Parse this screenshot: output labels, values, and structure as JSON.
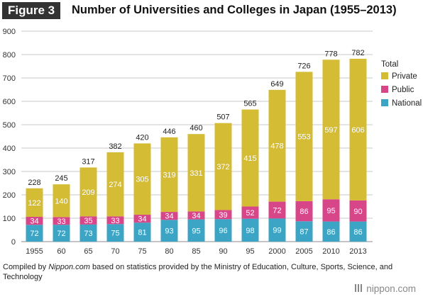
{
  "header": {
    "figure_label": "Figure 3",
    "title": "Number of Universities and Colleges in Japan (1955–2013)"
  },
  "source": {
    "prefix": "Compiled by ",
    "site": "Nippon.com",
    "suffix": " based on statistics provided by the Ministry of Education, Culture, Sports, Science, and Technology"
  },
  "logo": {
    "text": "nippon.com"
  },
  "colors": {
    "private": "#d4bc34",
    "public": "#d8468a",
    "national": "#3ca4c4",
    "grid": "#c8c8c8",
    "axis": "#888888"
  },
  "chart_data": {
    "type": "bar",
    "stacked": true,
    "title": "Number of Universities and Colleges in Japan (1955–2013)",
    "categories": [
      "1955",
      "60",
      "65",
      "70",
      "75",
      "80",
      "85",
      "90",
      "95",
      "2000",
      "2005",
      "2010",
      "2013"
    ],
    "series": [
      {
        "name": "National",
        "values": [
          72,
          72,
          73,
          75,
          81,
          93,
          95,
          96,
          98,
          99,
          87,
          86,
          86
        ]
      },
      {
        "name": "Public",
        "values": [
          34,
          33,
          35,
          33,
          34,
          34,
          34,
          39,
          52,
          72,
          86,
          95,
          90
        ]
      },
      {
        "name": "Private",
        "values": [
          122,
          140,
          209,
          274,
          305,
          319,
          331,
          372,
          415,
          478,
          553,
          597,
          606
        ]
      }
    ],
    "totals": [
      228,
      245,
      317,
      382,
      420,
      446,
      460,
      507,
      565,
      649,
      726,
      778,
      782
    ],
    "ylim": [
      0,
      900
    ],
    "yticks": [
      0,
      100,
      200,
      300,
      400,
      500,
      600,
      700,
      800,
      900
    ],
    "legend": {
      "title": "Total",
      "placement": "right",
      "items": [
        "Private",
        "Public",
        "National"
      ]
    },
    "grid": true
  }
}
